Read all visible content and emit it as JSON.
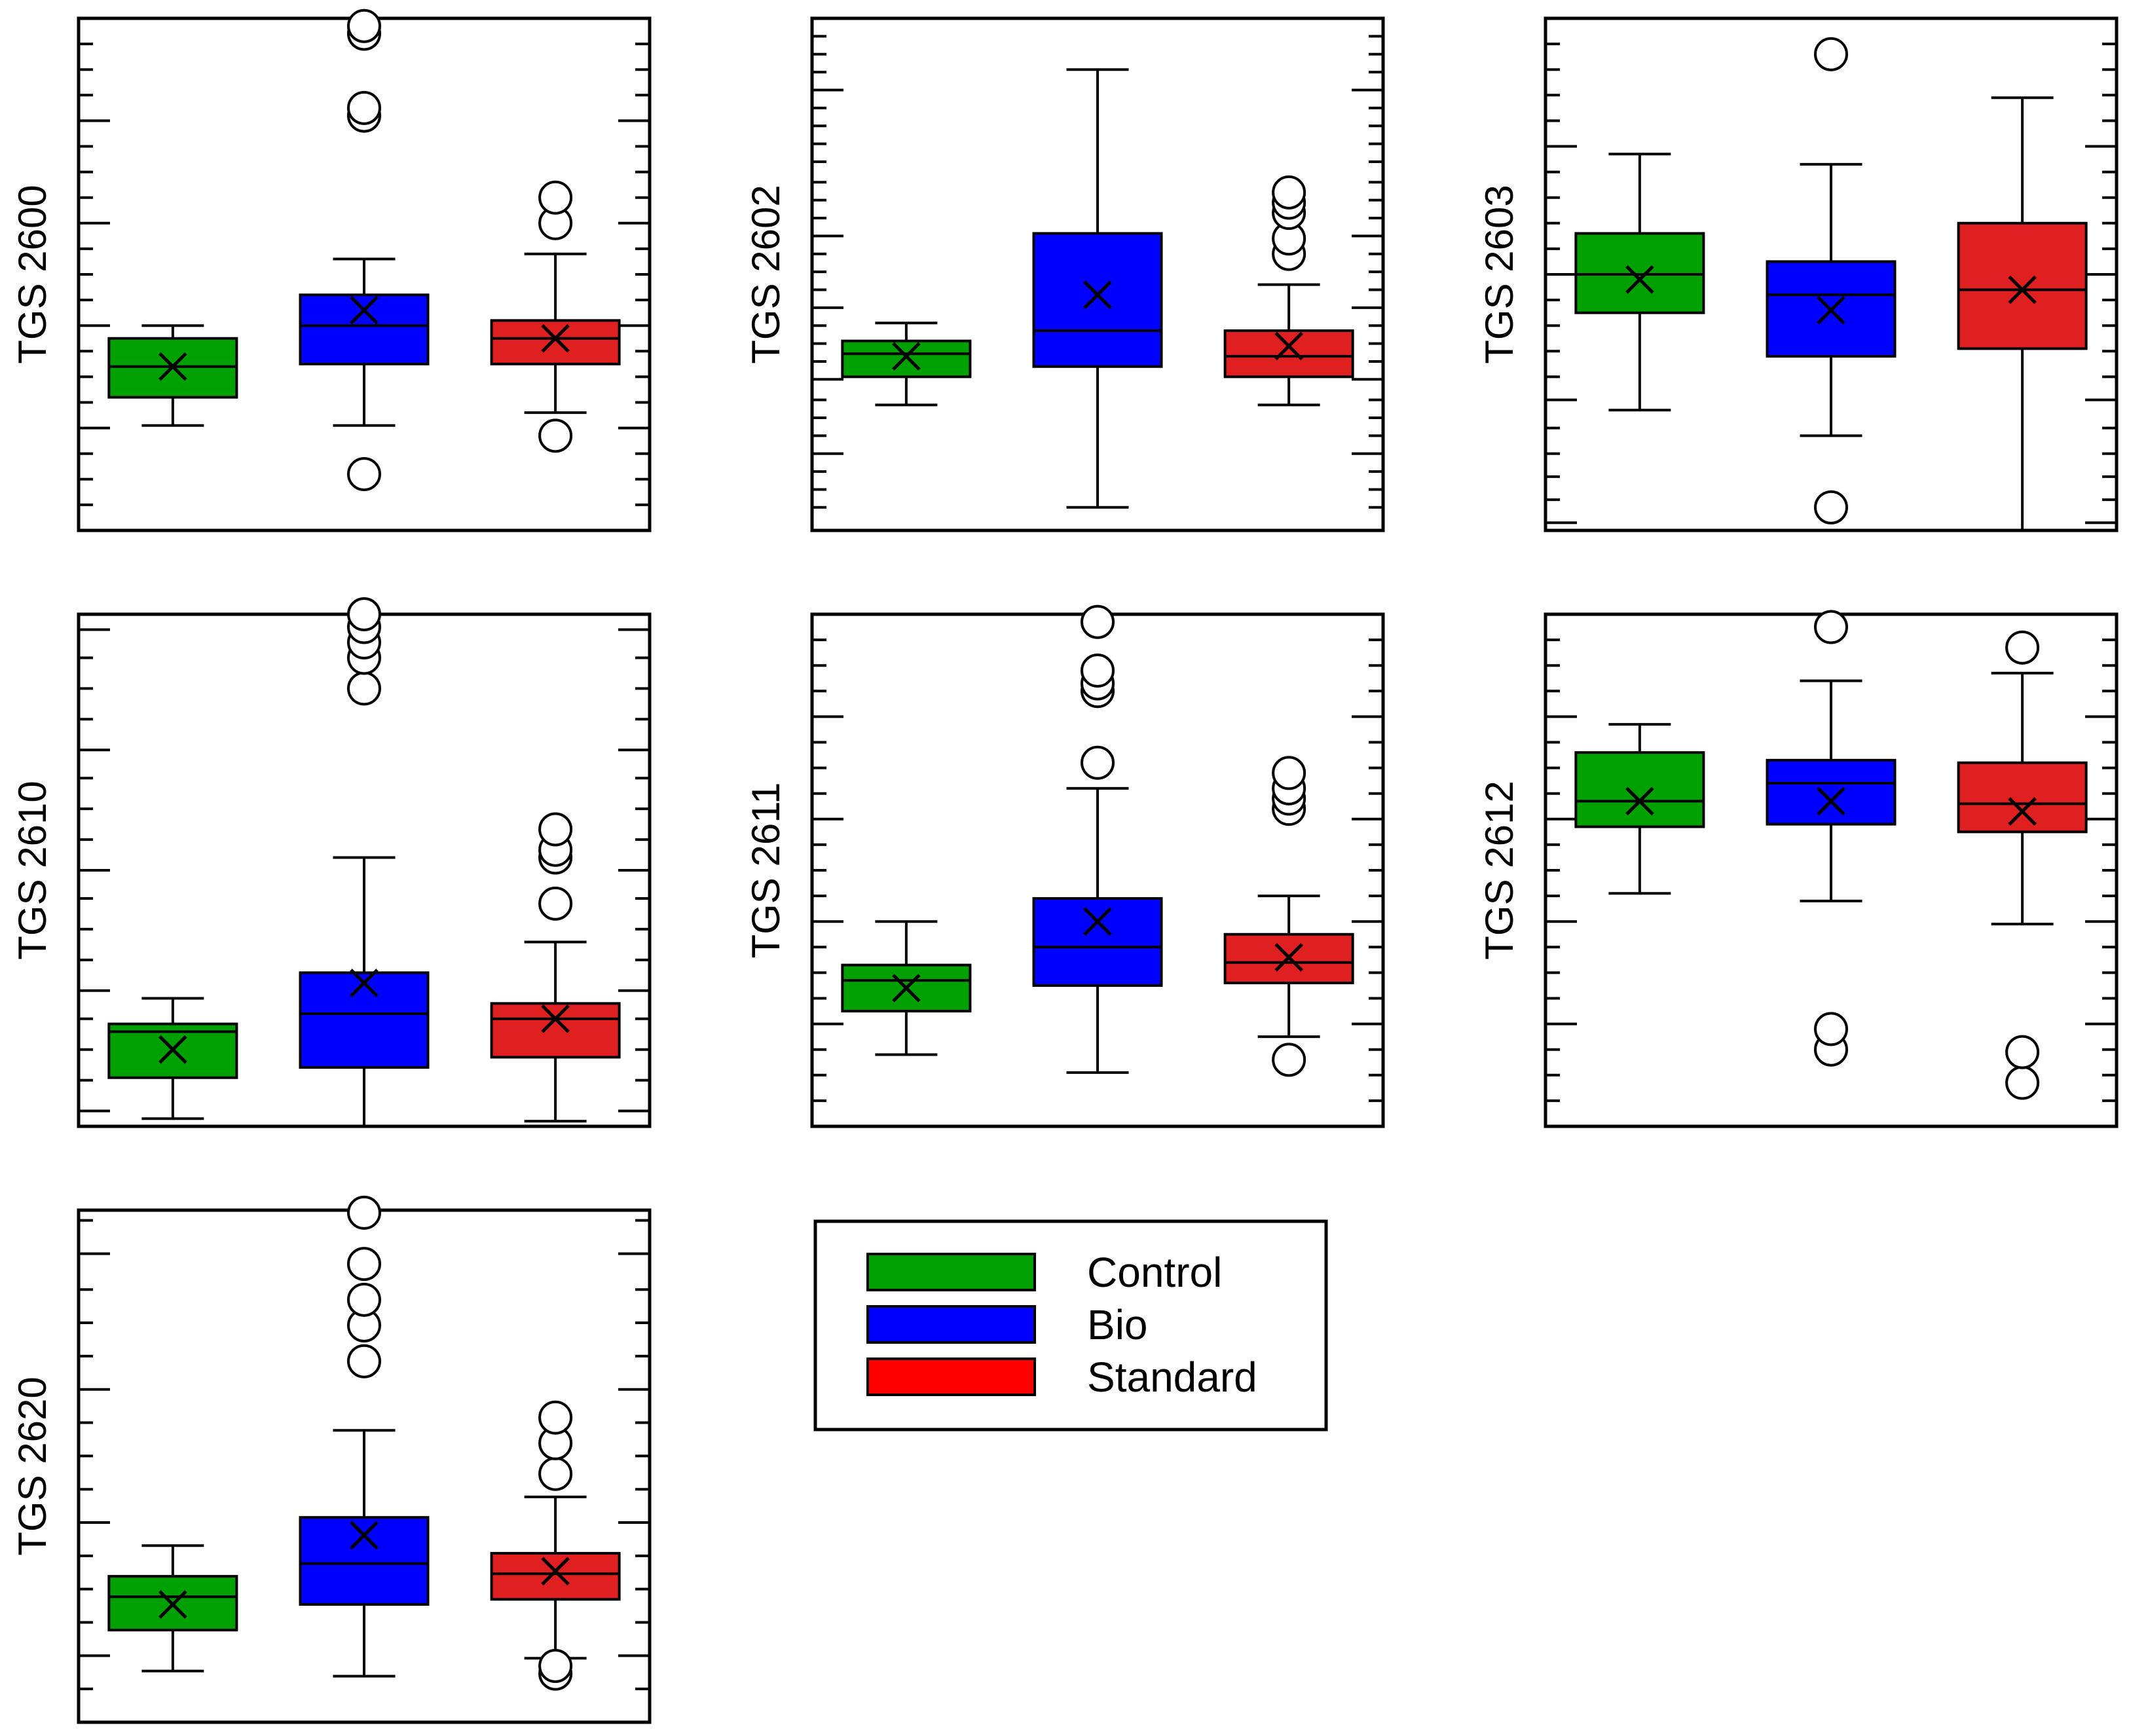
{
  "legend": {
    "entries": [
      {
        "label": "Control",
        "color": "#00A000"
      },
      {
        "label": "Bio",
        "color": "#0000FF"
      },
      {
        "label": "Standard",
        "color": "#FF0000"
      }
    ]
  },
  "chart_data": [
    {
      "type": "box",
      "ylabel": "TGS 2600",
      "ylim": [
        0,
        100
      ],
      "major_ticks": [
        20,
        40,
        60,
        80
      ],
      "minor_ticks": [
        5,
        10,
        15,
        25,
        30,
        35,
        45,
        50,
        55,
        65,
        70,
        75,
        85,
        90,
        95
      ],
      "categories": [
        "Control",
        "Bio",
        "Standard"
      ],
      "colors": [
        "#00A000",
        "#0000FF",
        "#E02020"
      ],
      "series": [
        {
          "whisker_low": 20.5,
          "q1": 26.0,
          "median": 32.0,
          "q3": 37.5,
          "whisker_high": 40.0,
          "mean": 32.0,
          "outliers": []
        },
        {
          "whisker_low": 20.5,
          "q1": 32.5,
          "median": 40.0,
          "q3": 46.0,
          "whisker_high": 53.0,
          "mean": 43.0,
          "outliers": [
            11.0,
            81.0,
            82.5,
            97.0,
            98.5
          ]
        },
        {
          "whisker_low": 23.0,
          "q1": 32.5,
          "median": 37.5,
          "q3": 41.0,
          "whisker_high": 54.0,
          "mean": 37.5,
          "outliers": [
            18.5,
            60.0,
            65.0
          ]
        }
      ]
    },
    {
      "type": "box",
      "ylabel": "TGS 2602",
      "ylim": [
        0,
        100
      ],
      "major_ticks": [
        15,
        29.5,
        43.5,
        57.5,
        86
      ],
      "minor_ticks": [
        4.5,
        8,
        11.5,
        18.5,
        22,
        25.5,
        33,
        36.5,
        40,
        47,
        50.5,
        54,
        61,
        64.5,
        68,
        72,
        75.5,
        79,
        82.5,
        89.5,
        93,
        96.5
      ],
      "categories": [
        "Control",
        "Bio",
        "Standard"
      ],
      "colors": [
        "#00A000",
        "#0000FF",
        "#E02020"
      ],
      "series": [
        {
          "whisker_low": 24.5,
          "q1": 30.0,
          "median": 34.5,
          "q3": 37.0,
          "whisker_high": 40.5,
          "mean": 34.0,
          "outliers": []
        },
        {
          "whisker_low": 4.5,
          "q1": 32.0,
          "median": 39.0,
          "q3": 58.0,
          "whisker_high": 90.0,
          "mean": 46.0,
          "outliers": []
        },
        {
          "whisker_low": 24.5,
          "q1": 30.0,
          "median": 34.0,
          "q3": 39.0,
          "whisker_high": 48.0,
          "mean": 36.0,
          "outliers": [
            54.0,
            57.0,
            62.0,
            64.0,
            66.0
          ]
        }
      ]
    },
    {
      "type": "box",
      "ylabel": "TGS 2603",
      "ylim": [
        0,
        100
      ],
      "major_ticks": [
        1.5,
        25.5,
        50,
        75
      ],
      "minor_ticks": [
        6,
        10.5,
        15,
        20,
        30,
        35,
        40,
        45,
        55,
        60,
        65,
        70,
        80,
        85,
        90,
        95
      ],
      "categories": [
        "Control",
        "Bio",
        "Standard"
      ],
      "colors": [
        "#00A000",
        "#0000FF",
        "#E02020"
      ],
      "series": [
        {
          "whisker_low": 23.5,
          "q1": 42.5,
          "median": 50.0,
          "q3": 58.0,
          "whisker_high": 73.5,
          "mean": 49.0,
          "outliers": []
        },
        {
          "whisker_low": 18.5,
          "q1": 34.0,
          "median": 46.0,
          "q3": 52.5,
          "whisker_high": 71.5,
          "mean": 43.0,
          "outliers": [
            4.5,
            93.0
          ]
        },
        {
          "whisker_low": 0,
          "q1": 35.5,
          "median": 47.0,
          "q3": 60.0,
          "whisker_high": 84.5,
          "mean": 47.0,
          "outliers": []
        }
      ]
    },
    {
      "type": "box",
      "ylabel": "TGS 2610",
      "ylim": [
        0,
        100
      ],
      "major_ticks": [
        3,
        26.5,
        50,
        73.5,
        97
      ],
      "minor_ticks": [
        9,
        15,
        21,
        32.5,
        38.5,
        44.5,
        56,
        62,
        68,
        79.5,
        85.5,
        91.5
      ],
      "categories": [
        "Control",
        "Bio",
        "Standard"
      ],
      "colors": [
        "#00A000",
        "#0000FF",
        "#E02020"
      ],
      "series": [
        {
          "whisker_low": 1.5,
          "q1": 9.5,
          "median": 18.5,
          "q3": 20.0,
          "whisker_high": 25.0,
          "mean": 15.0,
          "outliers": []
        },
        {
          "whisker_low": 0,
          "q1": 11.5,
          "median": 22.0,
          "q3": 30.0,
          "whisker_high": 52.5,
          "mean": 28.0,
          "outliers": [
            85.5,
            91.5,
            94.5,
            97.5,
            100
          ]
        },
        {
          "whisker_low": 1.0,
          "q1": 13.5,
          "median": 21.0,
          "q3": 24.0,
          "whisker_high": 36.0,
          "mean": 21.0,
          "outliers": [
            43.5,
            52.5,
            54.0,
            58.0
          ]
        }
      ]
    },
    {
      "type": "box",
      "ylabel": "TGS 2611",
      "ylim": [
        0,
        100
      ],
      "major_ticks": [
        20,
        40,
        60,
        80
      ],
      "minor_ticks": [
        5,
        10,
        15,
        25,
        30,
        35,
        45,
        50,
        55,
        65,
        70,
        75,
        85,
        90,
        95
      ],
      "categories": [
        "Control",
        "Bio",
        "Standard"
      ],
      "colors": [
        "#00A000",
        "#0000FF",
        "#E02020"
      ],
      "series": [
        {
          "whisker_low": 14.0,
          "q1": 22.5,
          "median": 28.5,
          "q3": 31.5,
          "whisker_high": 40.0,
          "mean": 27.0,
          "outliers": []
        },
        {
          "whisker_low": 10.5,
          "q1": 27.5,
          "median": 35.0,
          "q3": 44.5,
          "whisker_high": 66.0,
          "mean": 40.0,
          "outliers": [
            71.0,
            85.0,
            86.5,
            89.0,
            98.5
          ]
        },
        {
          "whisker_low": 17.5,
          "q1": 28.0,
          "median": 32.0,
          "q3": 37.5,
          "whisker_high": 45.0,
          "mean": 33.0,
          "outliers": [
            13.0,
            62.0,
            64.0,
            66.0,
            69.0
          ]
        }
      ]
    },
    {
      "type": "box",
      "ylabel": "TGS 2612",
      "ylim": [
        0,
        100
      ],
      "major_ticks": [
        20,
        40,
        60,
        80
      ],
      "minor_ticks": [
        5,
        10,
        15,
        25,
        30,
        35,
        45,
        50,
        55,
        65,
        70,
        75,
        85,
        90,
        95
      ],
      "categories": [
        "Control",
        "Bio",
        "Standard"
      ],
      "colors": [
        "#00A000",
        "#0000FF",
        "#E02020"
      ],
      "series": [
        {
          "whisker_low": 45.5,
          "q1": 58.5,
          "median": 63.5,
          "q3": 73.0,
          "whisker_high": 78.5,
          "mean": 63.5,
          "outliers": []
        },
        {
          "whisker_low": 44.0,
          "q1": 59.0,
          "median": 67.0,
          "q3": 71.5,
          "whisker_high": 87.0,
          "mean": 63.5,
          "outliers": [
            15.0,
            19.0,
            97.5
          ]
        },
        {
          "whisker_low": 39.5,
          "q1": 57.5,
          "median": 63.0,
          "q3": 71.0,
          "whisker_high": 88.5,
          "mean": 61.5,
          "outliers": [
            8.5,
            14.5,
            93.5
          ]
        }
      ]
    },
    {
      "type": "box",
      "ylabel": "TGS 2620",
      "ylim": [
        0,
        100
      ],
      "major_ticks": [
        13,
        39,
        65,
        91.5
      ],
      "minor_ticks": [
        6.5,
        19.5,
        26,
        32.5,
        45.5,
        52,
        58.5,
        71.5,
        78,
        84.5,
        98
      ],
      "categories": [
        "Control",
        "Bio",
        "Standard"
      ],
      "colors": [
        "#00A000",
        "#0000FF",
        "#E02020"
      ],
      "series": [
        {
          "whisker_low": 10.0,
          "q1": 18.0,
          "median": 24.5,
          "q3": 28.5,
          "whisker_high": 34.5,
          "mean": 23.0,
          "outliers": []
        },
        {
          "whisker_low": 9.0,
          "q1": 23.0,
          "median": 31.0,
          "q3": 40.0,
          "whisker_high": 57.0,
          "mean": 36.5,
          "outliers": [
            70.5,
            77.5,
            82.5,
            89.5,
            99.5
          ]
        },
        {
          "whisker_low": 12.5,
          "q1": 24.0,
          "median": 29.0,
          "q3": 33.0,
          "whisker_high": 44.0,
          "mean": 29.5,
          "outliers": [
            9.5,
            11.0,
            48.5,
            54.5,
            59.5
          ]
        }
      ]
    }
  ]
}
